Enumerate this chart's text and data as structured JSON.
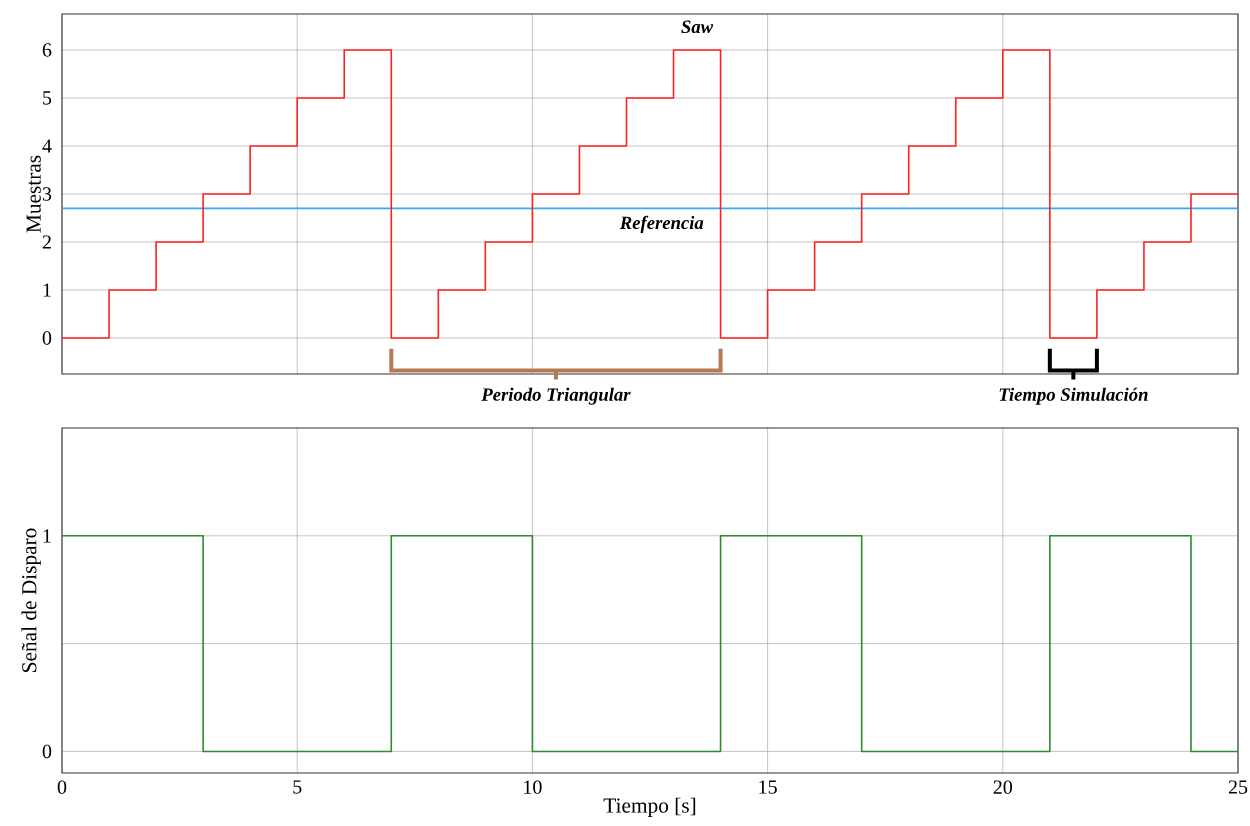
{
  "chart_data": [
    {
      "type": "step",
      "ylabel": "Muestras",
      "xlim": [
        0,
        25
      ],
      "ylim": [
        -0.75,
        6.75
      ],
      "xticks": [
        0,
        5,
        10,
        15,
        20,
        25
      ],
      "yticks": [
        0,
        1,
        2,
        3,
        4,
        5,
        6
      ],
      "grid": true,
      "tick_labels": "y",
      "x": [
        0,
        1,
        2,
        3,
        4,
        5,
        6,
        7,
        8,
        9,
        10,
        11,
        12,
        13,
        14,
        15,
        16,
        17,
        18,
        19,
        20,
        21,
        22,
        23,
        24,
        25
      ],
      "series": [
        {
          "name": "Saw",
          "color": "#ff2020",
          "values": [
            0,
            1,
            2,
            3,
            4,
            5,
            6,
            0,
            1,
            2,
            3,
            4,
            5,
            6,
            0,
            1,
            2,
            3,
            4,
            5,
            6,
            0,
            1,
            2,
            3,
            3
          ]
        }
      ],
      "ref_lines": [
        {
          "axis": "y",
          "value": 2.7,
          "label": "Referencia",
          "color": "#3aa8f5"
        }
      ],
      "annotations": [
        "Periodo Triangular",
        "Tiempo Simulación"
      ]
    },
    {
      "type": "step",
      "ylabel": "Señal de Disparo",
      "xlabel": "Tiempo [s]",
      "xlim": [
        0,
        25
      ],
      "ylim": [
        -0.1,
        1.5
      ],
      "xticks": [
        0,
        5,
        10,
        15,
        20,
        25
      ],
      "yticks": [
        0,
        {
          "value": 0.5,
          "label": null
        },
        1
      ],
      "grid": true,
      "x": [
        0,
        3,
        7,
        10,
        14,
        17,
        21,
        24,
        25
      ],
      "series": [
        {
          "color": "#2e8b2e",
          "values": [
            1,
            0,
            1,
            0,
            1,
            0,
            1,
            0,
            0
          ]
        }
      ]
    }
  ]
}
